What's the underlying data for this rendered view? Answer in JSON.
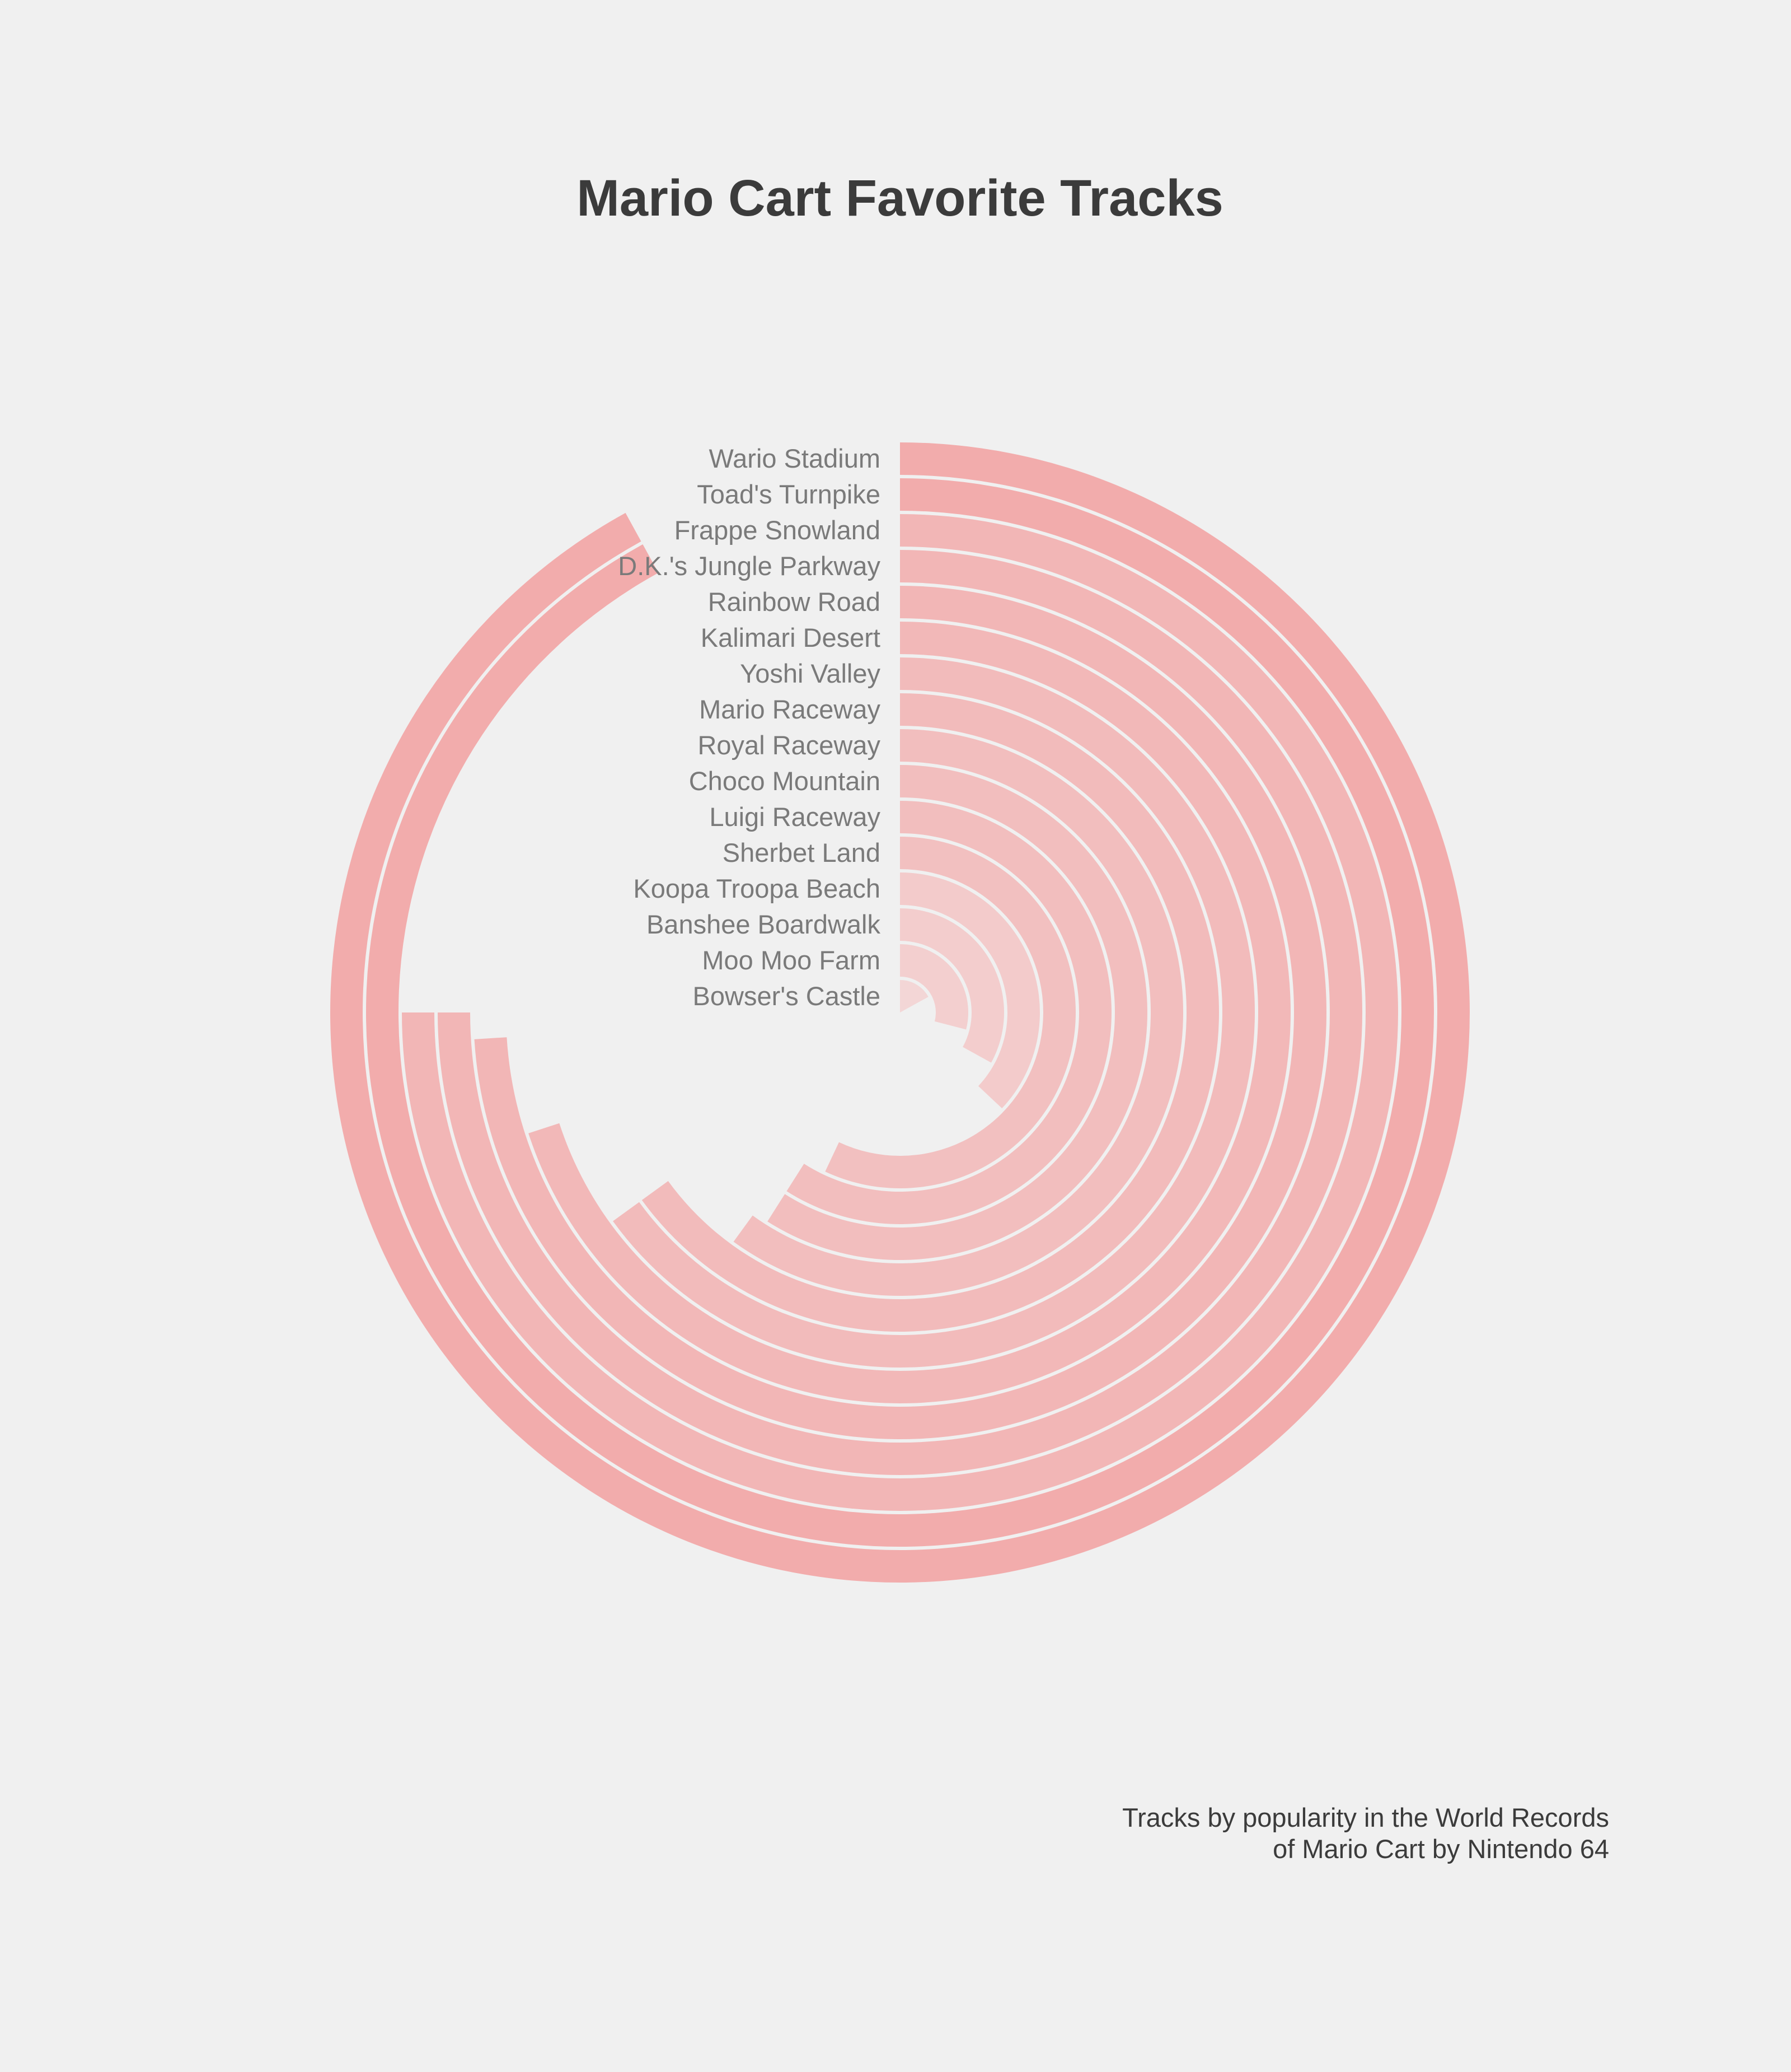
{
  "chart_data": {
    "type": "radial-bar",
    "title": "Mario Cart Favorite Tracks",
    "caption_lines": [
      "Tracks by popularity in the World Records",
      "of Mario Cart by Nintendo 64"
    ],
    "max_value": 100,
    "colors": {
      "background": "#f0f0f0",
      "bar_max": "#f2acac",
      "bar_min": "#f3d6d6",
      "label": "#7a7a7a",
      "title": "#3b3b3b"
    },
    "tracks": [
      {
        "name": "Wario Stadium",
        "value": 92
      },
      {
        "name": "Toad's Turnpike",
        "value": 92
      },
      {
        "name": "Frappe Snowland",
        "value": 75
      },
      {
        "name": "D.K.'s Jungle Parkway",
        "value": 75
      },
      {
        "name": "Rainbow Road",
        "value": 74
      },
      {
        "name": "Kalimari Desert",
        "value": 70
      },
      {
        "name": "Yoshi Valley",
        "value": 65
      },
      {
        "name": "Mario Raceway",
        "value": 65
      },
      {
        "name": "Royal Raceway",
        "value": 60
      },
      {
        "name": "Choco Mountain",
        "value": 59
      },
      {
        "name": "Luigi Raceway",
        "value": 59
      },
      {
        "name": "Sherbet Land",
        "value": 57
      },
      {
        "name": "Koopa Troopa Beach",
        "value": 37
      },
      {
        "name": "Banshee Boardwalk",
        "value": 33
      },
      {
        "name": "Moo Moo Farm",
        "value": 29
      },
      {
        "name": "Bowser's Castle",
        "value": 17
      }
    ]
  }
}
